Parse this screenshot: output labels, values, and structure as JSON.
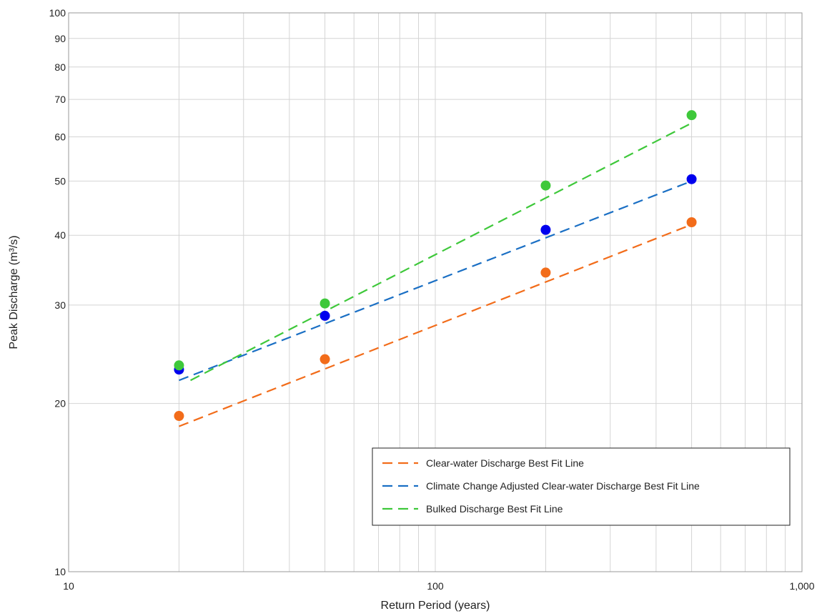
{
  "chart_data": {
    "type": "scatter",
    "title": "",
    "xlabel": "Return Period (years)",
    "ylabel": "Peak Discharge (m³/s)",
    "xscale": "log",
    "yscale": "log",
    "xlim": [
      10,
      1000
    ],
    "ylim": [
      10,
      100
    ],
    "grid": true,
    "legend_position": "bottom-right",
    "x_tick_labels": [
      {
        "value": 10,
        "label": "10"
      },
      {
        "value": 100,
        "label": "100"
      },
      {
        "value": 1000,
        "label": "1,000"
      }
    ],
    "y_tick_labels": [
      {
        "value": 10,
        "label": "10"
      },
      {
        "value": 20,
        "label": "20"
      },
      {
        "value": 30,
        "label": "30"
      },
      {
        "value": 40,
        "label": "40"
      },
      {
        "value": 50,
        "label": "50"
      },
      {
        "value": 60,
        "label": "60"
      },
      {
        "value": 70,
        "label": "70"
      },
      {
        "value": 80,
        "label": "80"
      },
      {
        "value": 90,
        "label": "90"
      },
      {
        "value": 100,
        "label": "100"
      }
    ],
    "series": [
      {
        "name": "Clear-water Discharge Best Fit Line",
        "color": "#f26c1a",
        "marker_color": "#f26c1a",
        "points": [
          [
            20,
            19.0
          ],
          [
            50,
            24.0
          ],
          [
            200,
            34.3
          ],
          [
            500,
            42.2
          ]
        ],
        "fit_line": [
          [
            20,
            18.2
          ],
          [
            500,
            41.8
          ]
        ]
      },
      {
        "name": "Climate Change Adjusted Clear-water Discharge Best Fit Line",
        "color": "#1a6fc4",
        "marker_color": "#0000ee",
        "points": [
          [
            20,
            23.0
          ],
          [
            50,
            28.7
          ],
          [
            200,
            40.9
          ],
          [
            500,
            50.4
          ]
        ],
        "fit_line": [
          [
            20,
            22.0
          ],
          [
            500,
            50.0
          ]
        ]
      },
      {
        "name": "Bulked Discharge Best Fit Line",
        "color": "#3ec83a",
        "marker_color": "#3ec83a",
        "points": [
          [
            20,
            23.4
          ],
          [
            50,
            30.2
          ],
          [
            200,
            49.1
          ],
          [
            500,
            65.6
          ]
        ],
        "fit_line": [
          [
            21.5,
            22.0
          ],
          [
            500,
            63.5
          ]
        ]
      }
    ]
  }
}
